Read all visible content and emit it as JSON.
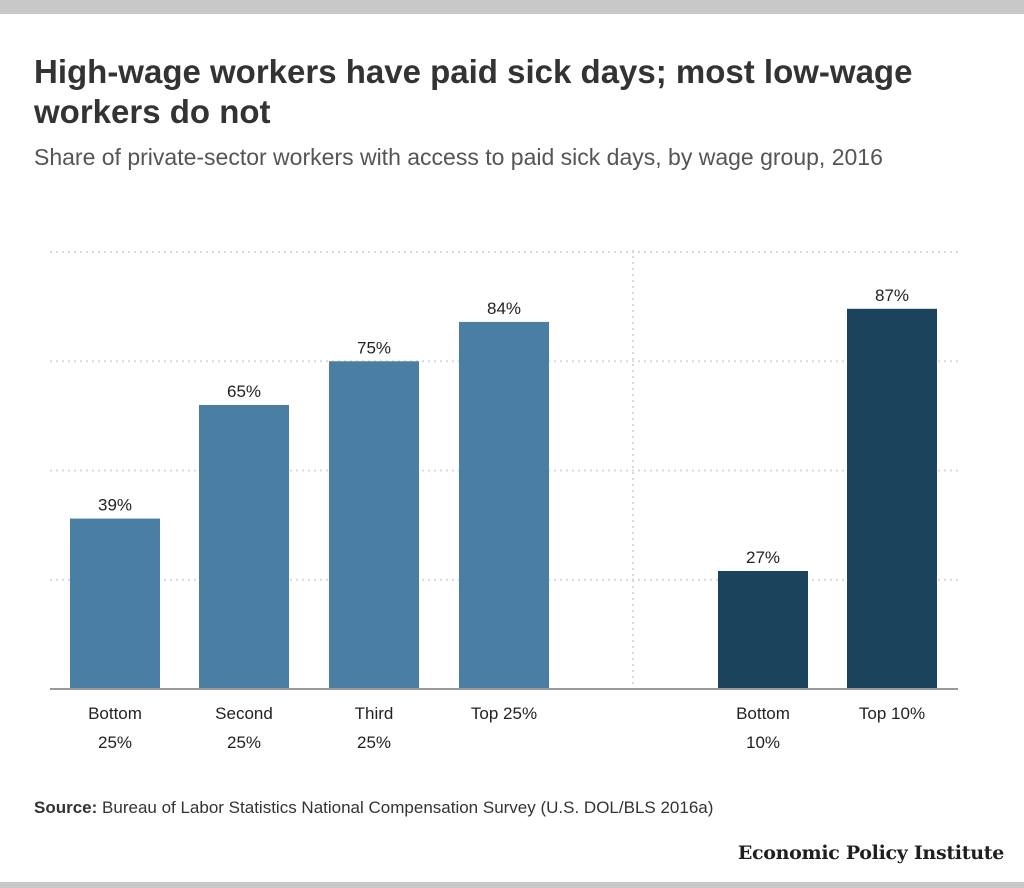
{
  "title": "High-wage workers have paid sick days; most low-wage workers do not",
  "subtitle": "Share of private-sector workers with access to paid sick days, by wage group, 2016",
  "source_label": "Source:",
  "source_text": "Bureau of Labor Statistics National Compensation Survey (U.S. DOL/BLS 2016a)",
  "brand": "Economic Policy Institute",
  "colors": {
    "quartile_bars": "#4a7fa3",
    "decile_bars": "#1b435c",
    "grid": "#d9d9d9",
    "axis": "#9a9a9a"
  },
  "chart_data": {
    "type": "bar",
    "ylim": [
      0,
      100
    ],
    "grid": true,
    "groups": [
      {
        "categories": [
          "Bottom 25%",
          "Second 25%",
          "Third 25%",
          "Top 25%"
        ],
        "values": [
          39,
          65,
          75,
          84
        ],
        "labels": [
          "39%",
          "65%",
          "75%",
          "84%"
        ],
        "color": "#4a7fa3"
      },
      {
        "categories": [
          "Bottom 10%",
          "Top 10%"
        ],
        "values": [
          27,
          87
        ],
        "labels": [
          "27%",
          "87%"
        ],
        "color": "#1b435c"
      }
    ]
  }
}
